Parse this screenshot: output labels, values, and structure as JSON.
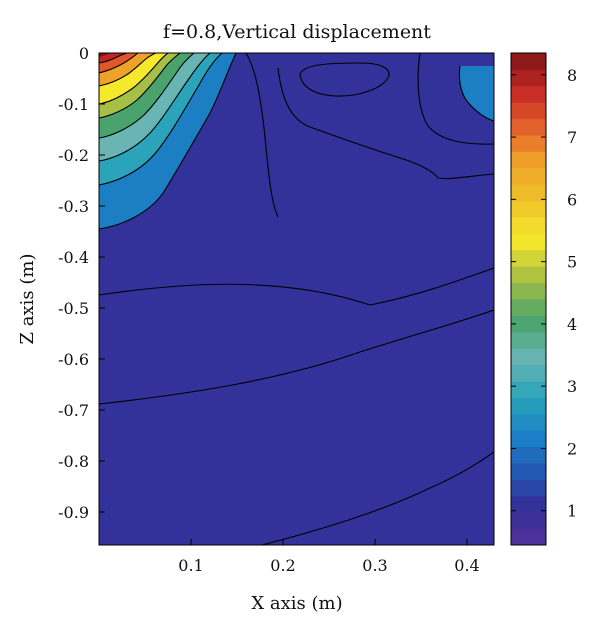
{
  "chart_data": {
    "type": "heatmap",
    "subtype": "filled-contour",
    "title": "f=0.8,Vertical displacement",
    "xlabel": "X axis (m)",
    "ylabel": "Z axis (m)",
    "xlim": [
      0,
      0.43
    ],
    "ylim": [
      -0.96,
      0
    ],
    "x_ticks": [
      0.1,
      0.2,
      0.3,
      0.4
    ],
    "x_tick_labels": [
      "0.1",
      "0.2",
      "0.3",
      "0.4"
    ],
    "y_ticks": [
      0,
      -0.1,
      -0.2,
      -0.3,
      -0.4,
      -0.5,
      -0.6,
      -0.7,
      -0.8,
      -0.9
    ],
    "y_tick_labels": [
      "0",
      "-0.1",
      "-0.2",
      "-0.3",
      "-0.4",
      "-0.5",
      "-0.6",
      "-0.7",
      "-0.8",
      "-0.9"
    ],
    "colorbar": {
      "range": [
        0.45,
        8.35
      ],
      "ticks": [
        1,
        2,
        3,
        4,
        5,
        6,
        7,
        8
      ],
      "tick_labels": [
        "1",
        "2",
        "3",
        "4",
        "5",
        "6",
        "7",
        "8"
      ],
      "colormap": "jet"
    },
    "background_level_color": "#33319a",
    "field": {
      "description_level": "peak near surface at x≈0, levels drop with depth",
      "peak_value": 8.2,
      "peak_location": [
        0.0,
        0.0
      ],
      "secondary_lobes": [
        {
          "center": [
            0.26,
            -0.02
          ],
          "value": 1.4
        },
        {
          "center": [
            0.43,
            -0.04
          ],
          "value": 2.0
        }
      ]
    },
    "contour_lines_x_at_depth": [
      {
        "z": -0.47,
        "x_start": 0.0,
        "x_end": 0.43,
        "z_end": -0.42
      },
      {
        "z": -0.69,
        "x_start": 0.0,
        "x_end": 0.43,
        "z_end": -0.55
      },
      {
        "z": -0.96,
        "x_start": 0.2,
        "x_end": 0.43,
        "z_end": -0.78
      }
    ],
    "grid": false,
    "legend": "colorbar-right"
  }
}
